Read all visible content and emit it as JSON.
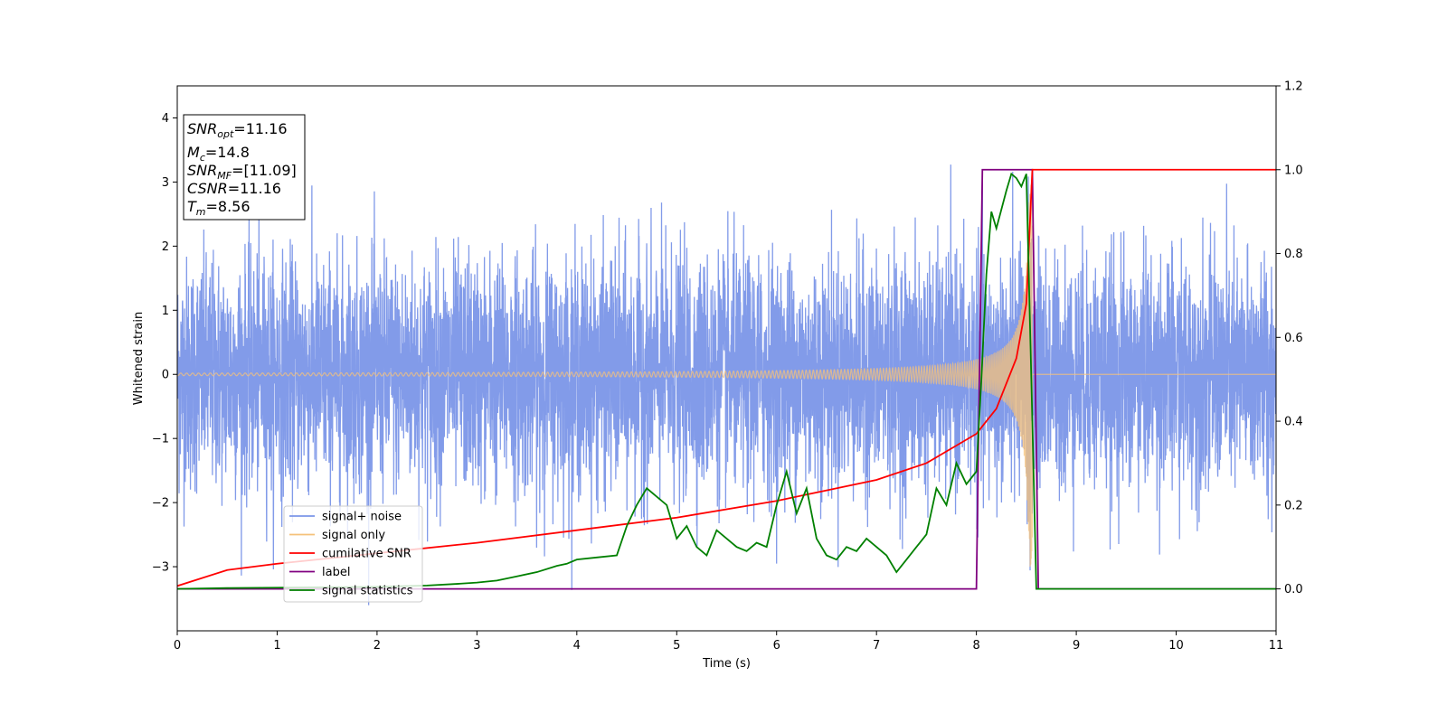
{
  "chart_data": {
    "type": "line",
    "xlabel": "Time (s)",
    "ylabel": "Whitened strain",
    "xlim": [
      0,
      11
    ],
    "ylim": [
      -4,
      4.5
    ],
    "y2lim": [
      -0.1,
      1.2
    ],
    "xticks": [
      "0",
      "1",
      "2",
      "3",
      "4",
      "5",
      "6",
      "7",
      "8",
      "9",
      "10",
      "11"
    ],
    "yticks": [
      "−3",
      "−2",
      "−1",
      "0",
      "1",
      "2",
      "3",
      "4"
    ],
    "y2ticks": [
      "0.0",
      "0.2",
      "0.4",
      "0.6",
      "0.8",
      "1.0",
      "1.2"
    ],
    "grid": false,
    "legend_position": "lower-left",
    "series": [
      {
        "name": "signal+ noise",
        "axis": "left",
        "color": "#7b96e8",
        "noise_sigma": 0.9,
        "x_range": [
          0,
          11
        ],
        "min": -3.6,
        "max": 4.0
      },
      {
        "name": "signal only",
        "axis": "left",
        "color": "#f5c27a",
        "chirp_start": 0,
        "chirp_merger": 8.56,
        "amplitude_start": 0.02,
        "amplitude_peak": 3.0,
        "after_merger": 0
      },
      {
        "name": "cumilative SNR",
        "axis": "right",
        "color": "#ff0000",
        "x": [
          0,
          0.5,
          1,
          2,
          3,
          4,
          5,
          6,
          6.5,
          7,
          7.5,
          8,
          8.2,
          8.4,
          8.5,
          8.56,
          8.6,
          11
        ],
        "y": [
          0.007,
          0.045,
          0.06,
          0.085,
          0.11,
          0.14,
          0.17,
          0.21,
          0.235,
          0.26,
          0.3,
          0.37,
          0.43,
          0.55,
          0.68,
          1.0,
          1.0,
          1.0
        ]
      },
      {
        "name": "label",
        "axis": "right",
        "color": "#800080",
        "x": [
          0,
          8.0,
          8.06,
          8.56,
          8.62,
          11
        ],
        "y": [
          0.0,
          0.0,
          1.0,
          1.0,
          0.0,
          0.0
        ]
      },
      {
        "name": "signal statistics",
        "axis": "right",
        "color": "#008000",
        "x": [
          0,
          0.5,
          1,
          1.5,
          2,
          2.5,
          2.8,
          3.0,
          3.2,
          3.4,
          3.6,
          3.8,
          3.9,
          4.0,
          4.2,
          4.4,
          4.5,
          4.6,
          4.7,
          4.8,
          4.9,
          5.0,
          5.1,
          5.2,
          5.3,
          5.4,
          5.5,
          5.6,
          5.7,
          5.8,
          5.9,
          6.0,
          6.1,
          6.2,
          6.3,
          6.4,
          6.5,
          6.6,
          6.7,
          6.8,
          6.9,
          7.0,
          7.1,
          7.2,
          7.3,
          7.4,
          7.5,
          7.6,
          7.7,
          7.8,
          7.9,
          8.0,
          8.05,
          8.1,
          8.15,
          8.2,
          8.3,
          8.35,
          8.4,
          8.45,
          8.5,
          8.55,
          8.6,
          8.7,
          9,
          10,
          11
        ],
        "y": [
          0.0,
          0.002,
          0.003,
          0.004,
          0.005,
          0.008,
          0.012,
          0.015,
          0.02,
          0.03,
          0.04,
          0.055,
          0.06,
          0.07,
          0.075,
          0.08,
          0.15,
          0.2,
          0.24,
          0.22,
          0.2,
          0.12,
          0.15,
          0.1,
          0.08,
          0.14,
          0.12,
          0.1,
          0.09,
          0.11,
          0.1,
          0.2,
          0.28,
          0.18,
          0.24,
          0.12,
          0.08,
          0.07,
          0.1,
          0.09,
          0.12,
          0.1,
          0.08,
          0.04,
          0.07,
          0.1,
          0.13,
          0.24,
          0.2,
          0.3,
          0.25,
          0.28,
          0.5,
          0.75,
          0.9,
          0.86,
          0.95,
          0.99,
          0.98,
          0.96,
          0.99,
          0.5,
          0.0,
          0.0,
          0.0,
          0.0,
          0.0
        ]
      }
    ],
    "annotation": {
      "lines": [
        {
          "name": "SNR",
          "sub": "opt",
          "value": "=11.16"
        },
        {
          "name": "M",
          "sub": "c",
          "value": "=14.8"
        },
        {
          "name": "SNR",
          "sub": "MF",
          "value": "=[11.09]"
        },
        {
          "name": "CSNR",
          "sub": "",
          "value": "=11.16"
        },
        {
          "name": "T",
          "sub": "m",
          "value": "=8.56"
        }
      ]
    }
  }
}
